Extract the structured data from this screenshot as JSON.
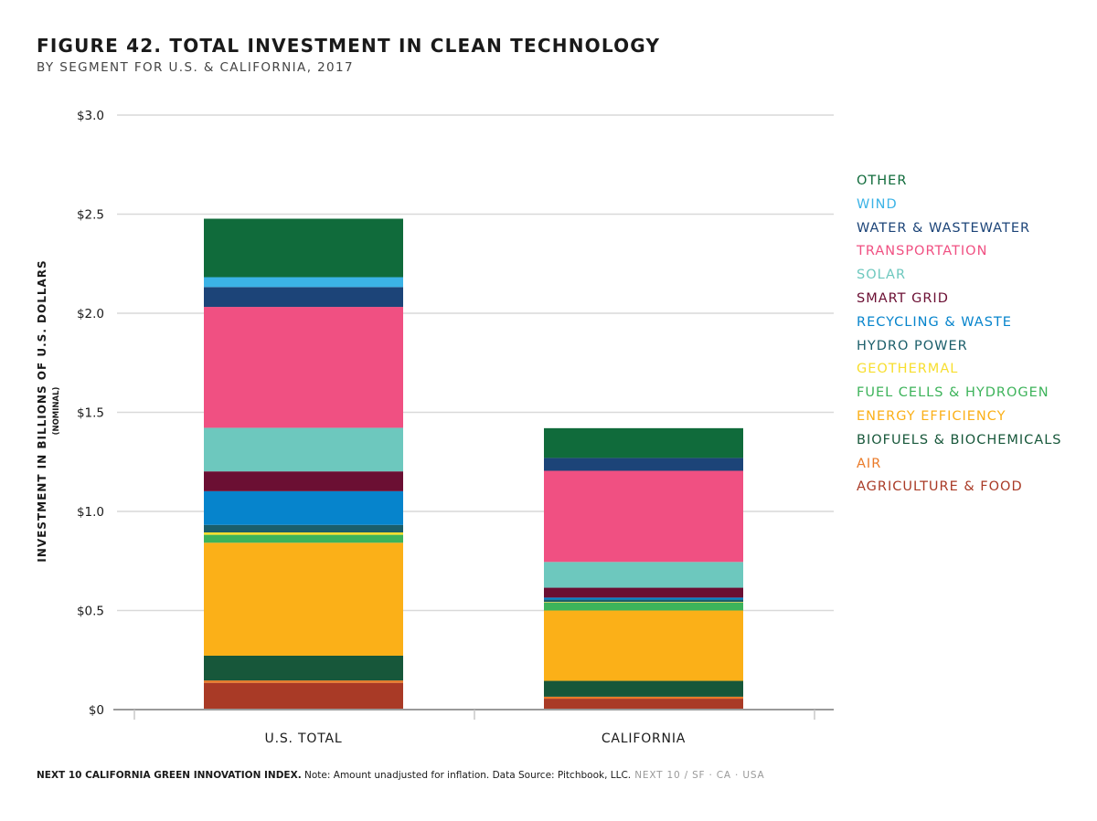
{
  "header": {
    "title": "FIGURE 42. TOTAL INVESTMENT IN CLEAN TECHNOLOGY",
    "subtitle": "BY SEGMENT FOR U.S. & CALIFORNIA, 2017"
  },
  "footer": {
    "source_bold": "NEXT 10 CALIFORNIA GREEN INNOVATION INDEX.",
    "note": " Note: Amount unadjusted for inflation. Data Source: Pitchbook, LLC.",
    "brand": " NEXT 10  /  SF · CA · USA"
  },
  "chart_data": {
    "type": "bar",
    "stacked": true,
    "title": "FIGURE 42. TOTAL INVESTMENT IN CLEAN TECHNOLOGY",
    "subtitle": "BY SEGMENT FOR U.S. & CALIFORNIA, 2017",
    "ylabel": "INVESTMENT IN BILLIONS OF U.S. DOLLARS",
    "ylabel_sub": "(NOMINAL)",
    "ylim": [
      0,
      3.0
    ],
    "yticks": [
      0,
      0.5,
      1.0,
      1.5,
      2.0,
      2.5,
      3.0
    ],
    "ytick_labels": [
      "$0",
      "$0.5",
      "$1.0",
      "$1.5",
      "$2.0",
      "$2.5",
      "$3.0"
    ],
    "categories": [
      "U.S. TOTAL",
      "CALIFORNIA"
    ],
    "grid": true,
    "legend_position": "right",
    "series": [
      {
        "name": "AGRICULTURE & FOOD",
        "color": "#a93a26",
        "values": [
          0.135,
          0.055
        ]
      },
      {
        "name": "AIR",
        "color": "#ea7a28",
        "values": [
          0.012,
          0.01
        ]
      },
      {
        "name": "BIOFUELS & BIOCHEMICALS",
        "color": "#17573a",
        "values": [
          0.125,
          0.08
        ]
      },
      {
        "name": "ENERGY EFFICIENCY",
        "color": "#fbb018",
        "values": [
          0.57,
          0.355
        ]
      },
      {
        "name": "FUEL CELLS & HYDROGEN",
        "color": "#3db35a",
        "values": [
          0.04,
          0.04
        ]
      },
      {
        "name": "GEOTHERMAL",
        "color": "#f7de2e",
        "values": [
          0.012,
          0.003
        ]
      },
      {
        "name": "HYDRO POWER",
        "color": "#1b5e6a",
        "values": [
          0.038,
          0.012
        ]
      },
      {
        "name": "RECYCLING & WASTE",
        "color": "#0684cc",
        "values": [
          0.17,
          0.01
        ]
      },
      {
        "name": "SMART GRID",
        "color": "#6b0f33",
        "values": [
          0.1,
          0.05
        ]
      },
      {
        "name": "SOLAR",
        "color": "#6dc8be",
        "values": [
          0.22,
          0.13
        ]
      },
      {
        "name": "TRANSPORTATION",
        "color": "#f05082",
        "values": [
          0.61,
          0.46
        ]
      },
      {
        "name": "WATER & WASTEWATER",
        "color": "#1c4478",
        "values": [
          0.1,
          0.065
        ]
      },
      {
        "name": "WIND",
        "color": "#3bb3e6",
        "values": [
          0.05,
          0.0
        ]
      },
      {
        "name": "OTHER",
        "color": "#106b3b",
        "values": [
          0.295,
          0.15
        ]
      }
    ]
  }
}
